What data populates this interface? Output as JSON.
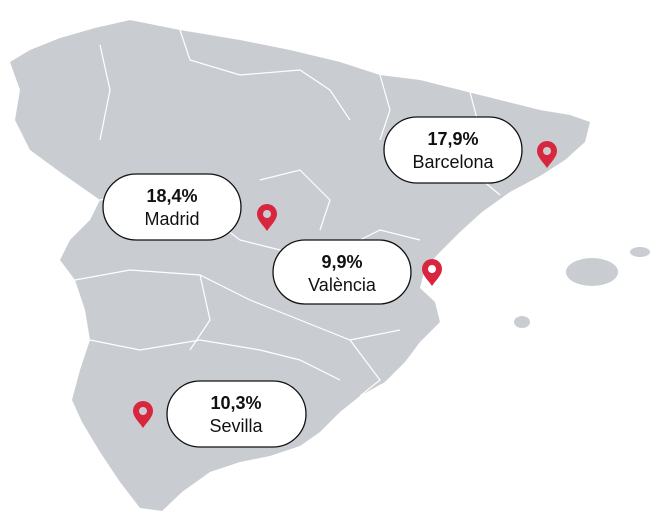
{
  "locations": [
    {
      "value": "17,9%",
      "name": "Barcelona"
    },
    {
      "value": "18,4%",
      "name": "Madrid"
    },
    {
      "value": "9,9%",
      "name": "València"
    },
    {
      "value": "10,3%",
      "name": "Sevilla"
    }
  ]
}
